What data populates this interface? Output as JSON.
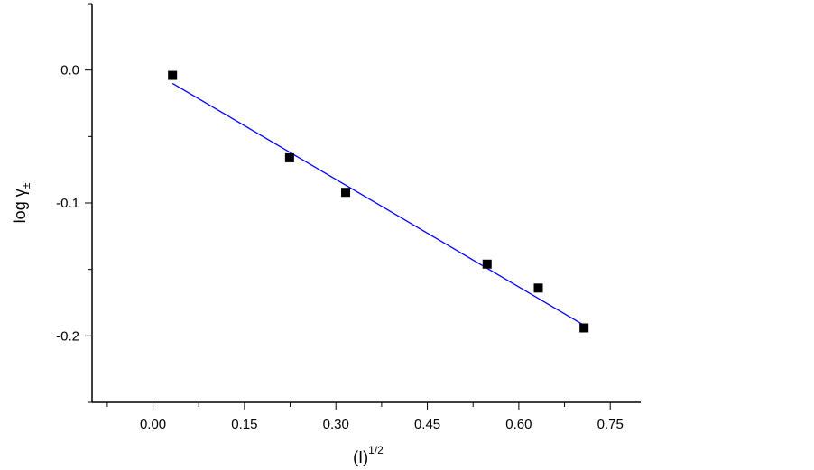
{
  "chart_data": {
    "type": "scatter",
    "title": "",
    "xlabel": "(I)",
    "xlabel_superscript": "1/2",
    "ylabel": "log γ",
    "ylabel_subscript": "±",
    "xlim": [
      -0.1,
      0.8
    ],
    "ylim": [
      -0.25,
      0.05
    ],
    "xticks": [
      0.0,
      0.15,
      0.3,
      0.45,
      0.6,
      0.75
    ],
    "xtick_labels": [
      "0.00",
      "0.15",
      "0.30",
      "0.45",
      "0.60",
      "0.75"
    ],
    "yticks": [
      0.0,
      -0.1,
      -0.2
    ],
    "ytick_labels": [
      "0.0",
      "-0.1",
      "-0.2"
    ],
    "grid": false,
    "series": [
      {
        "type": "scatter",
        "marker": "square",
        "color": "#000000",
        "x": [
          0.032,
          0.224,
          0.316,
          0.548,
          0.632,
          0.707
        ],
        "y": [
          -0.004,
          -0.066,
          -0.092,
          -0.146,
          -0.164,
          -0.194
        ]
      },
      {
        "type": "line",
        "color": "#0000ff",
        "x": [
          0.032,
          0.707
        ],
        "y": [
          -0.01,
          -0.192
        ]
      }
    ]
  }
}
